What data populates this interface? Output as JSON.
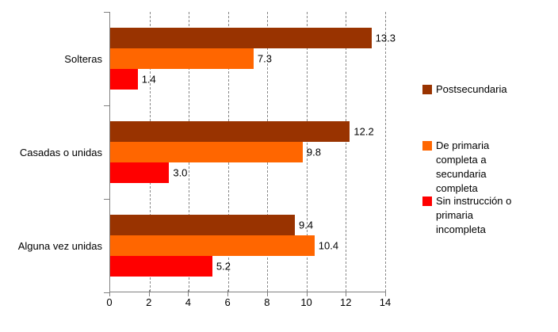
{
  "chart_data": {
    "type": "bar",
    "orientation": "horizontal",
    "title": "",
    "xlabel": "",
    "ylabel": "",
    "categories": [
      "Solteras",
      "Casadas o unidas",
      "Alguna vez unidas"
    ],
    "series": [
      {
        "name": "Postsecundaria",
        "color": "#993300",
        "values": [
          13.3,
          12.2,
          9.4
        ]
      },
      {
        "name": "De primaria completa a secundaria completa",
        "color": "#FF6600",
        "values": [
          7.3,
          9.8,
          10.4
        ]
      },
      {
        "name": "Sin instrucción o primaria incompleta",
        "color": "#FF0000",
        "values": [
          1.4,
          3.0,
          5.2
        ]
      }
    ],
    "value_labels": [
      "13.3",
      "7.3",
      "1.4",
      "12.2",
      "9.8",
      "3.0",
      "9.4",
      "10.4",
      "5.2"
    ],
    "xlim": [
      0,
      14
    ],
    "x_ticks": [
      0,
      2,
      4,
      6,
      8,
      10,
      12,
      14
    ],
    "grid": "vertical-dashed",
    "legend_position": "right"
  },
  "legend": {
    "items": [
      {
        "label": "Postsecundaria",
        "color": "#993300"
      },
      {
        "label": "De primaria\ncompleta a\nsecundaria\ncompleta",
        "color": "#FF6600"
      },
      {
        "label": "Sin instrucción o\nprimaria\nincompleta",
        "color": "#FF0000"
      }
    ]
  },
  "colors": {
    "axis": "#808080",
    "gridline": "#878787",
    "text": "#000000",
    "background": "#FFFFFF"
  }
}
